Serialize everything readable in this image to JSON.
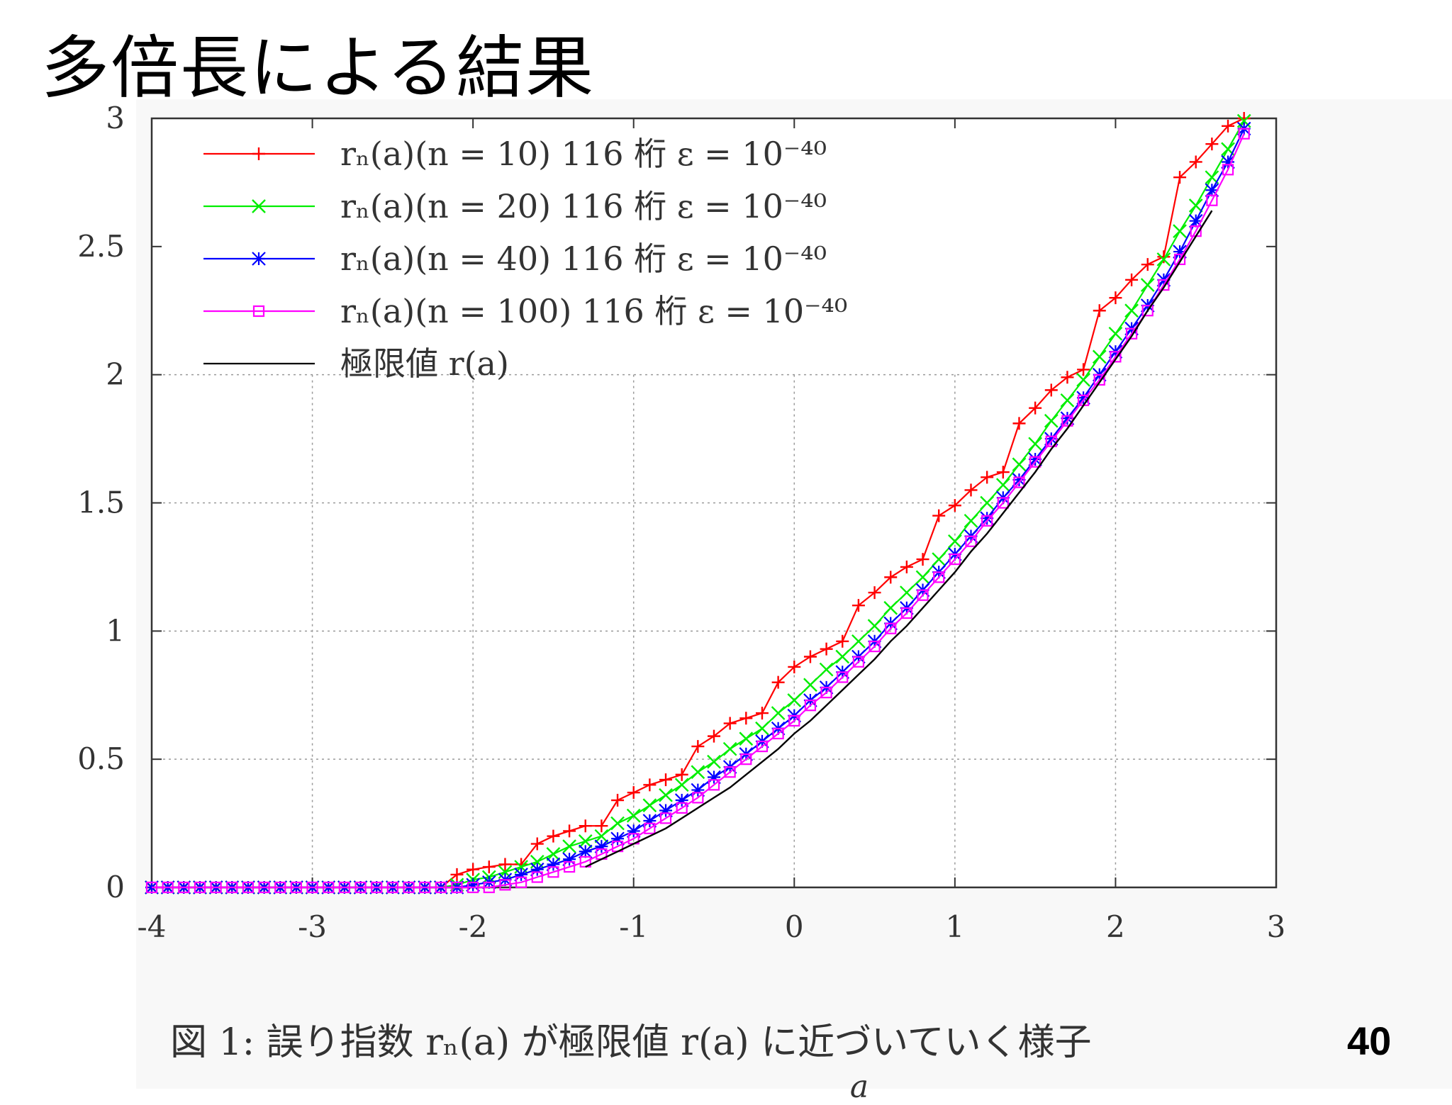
{
  "slide": {
    "title": "多倍長による結果",
    "page_number": "40"
  },
  "figure": {
    "caption": "図 1: 誤り指数 rₙ(a) が極限値 r(a) に近づいていく様子"
  },
  "chart_data": {
    "type": "line",
    "xlabel": "a",
    "ylabel": "",
    "xlim": [
      -4,
      3
    ],
    "ylim": [
      0,
      3
    ],
    "xticks": [
      "-4",
      "-3",
      "-2",
      "-1",
      "0",
      "1",
      "2",
      "3"
    ],
    "yticks": [
      "0",
      "0.5",
      "1",
      "1.5",
      "2",
      "2.5",
      "3"
    ],
    "grid": "dotted, inner region only (x -3..2, y 0.5..1.5)",
    "legend_position": "top-left",
    "series": [
      {
        "name": "rₙ(a)(n = 10) 116 桁 ε = 10⁻⁴⁰",
        "color": "#ff0000",
        "marker": "plus",
        "x": [
          -4.0,
          -3.9,
          -3.8,
          -3.7,
          -3.6,
          -3.5,
          -3.4,
          -3.3,
          -3.2,
          -3.1,
          -3.0,
          -2.9,
          -2.8,
          -2.7,
          -2.6,
          -2.5,
          -2.4,
          -2.3,
          -2.2,
          -2.1,
          -2.0,
          -1.9,
          -1.8,
          -1.7,
          -1.6,
          -1.5,
          -1.4,
          -1.3,
          -1.2,
          -1.1,
          -1.0,
          -0.9,
          -0.8,
          -0.7,
          -0.6,
          -0.5,
          -0.4,
          -0.3,
          -0.2,
          -0.1,
          0.0,
          0.1,
          0.2,
          0.3,
          0.4,
          0.5,
          0.6,
          0.7,
          0.8,
          0.9,
          1.0,
          1.1,
          1.2,
          1.3,
          1.4,
          1.5,
          1.6,
          1.7,
          1.8,
          1.9,
          2.0,
          2.1,
          2.2,
          2.3,
          2.4,
          2.5,
          2.6,
          2.7,
          2.8
        ],
        "y": [
          0,
          0,
          0,
          0,
          0,
          0,
          0,
          0,
          0,
          0,
          0,
          0,
          0,
          0,
          0,
          0,
          0,
          0,
          0,
          0.05,
          0.07,
          0.08,
          0.09,
          0.09,
          0.17,
          0.2,
          0.22,
          0.24,
          0.24,
          0.34,
          0.37,
          0.4,
          0.42,
          0.44,
          0.55,
          0.59,
          0.64,
          0.66,
          0.68,
          0.8,
          0.86,
          0.9,
          0.93,
          0.96,
          1.1,
          1.15,
          1.21,
          1.25,
          1.28,
          1.45,
          1.49,
          1.55,
          1.6,
          1.62,
          1.81,
          1.87,
          1.94,
          1.99,
          2.02,
          2.25,
          2.3,
          2.37,
          2.43,
          2.46,
          2.77,
          2.83,
          2.9,
          2.97,
          3.0
        ]
      },
      {
        "name": "rₙ(a)(n = 20) 116 桁 ε = 10⁻⁴⁰",
        "color": "#00ee00",
        "marker": "cross",
        "x": [
          -4.0,
          -3.9,
          -3.8,
          -3.7,
          -3.6,
          -3.5,
          -3.4,
          -3.3,
          -3.2,
          -3.1,
          -3.0,
          -2.9,
          -2.8,
          -2.7,
          -2.6,
          -2.5,
          -2.4,
          -2.3,
          -2.2,
          -2.1,
          -2.0,
          -1.9,
          -1.8,
          -1.7,
          -1.6,
          -1.5,
          -1.4,
          -1.3,
          -1.2,
          -1.1,
          -1.0,
          -0.9,
          -0.8,
          -0.7,
          -0.6,
          -0.5,
          -0.4,
          -0.3,
          -0.2,
          -0.1,
          0.0,
          0.1,
          0.2,
          0.3,
          0.4,
          0.5,
          0.6,
          0.7,
          0.8,
          0.9,
          1.0,
          1.1,
          1.2,
          1.3,
          1.4,
          1.5,
          1.6,
          1.7,
          1.8,
          1.9,
          2.0,
          2.1,
          2.2,
          2.3,
          2.4,
          2.5,
          2.6,
          2.7,
          2.8
        ],
        "y": [
          0,
          0,
          0,
          0,
          0,
          0,
          0,
          0,
          0,
          0,
          0,
          0,
          0,
          0,
          0,
          0,
          0,
          0,
          0,
          0.01,
          0.03,
          0.04,
          0.06,
          0.08,
          0.1,
          0.13,
          0.16,
          0.18,
          0.2,
          0.25,
          0.28,
          0.32,
          0.36,
          0.4,
          0.45,
          0.49,
          0.54,
          0.58,
          0.62,
          0.68,
          0.73,
          0.79,
          0.85,
          0.9,
          0.96,
          1.02,
          1.09,
          1.15,
          1.21,
          1.28,
          1.35,
          1.43,
          1.5,
          1.57,
          1.65,
          1.73,
          1.82,
          1.9,
          1.98,
          2.07,
          2.16,
          2.25,
          2.35,
          2.45,
          2.56,
          2.66,
          2.77,
          2.88,
          2.99
        ]
      },
      {
        "name": "rₙ(a)(n = 40) 116 桁 ε = 10⁻⁴⁰",
        "color": "#0000ff",
        "marker": "star",
        "x": [
          -4.0,
          -3.9,
          -3.8,
          -3.7,
          -3.6,
          -3.5,
          -3.4,
          -3.3,
          -3.2,
          -3.1,
          -3.0,
          -2.9,
          -2.8,
          -2.7,
          -2.6,
          -2.5,
          -2.4,
          -2.3,
          -2.2,
          -2.1,
          -2.0,
          -1.9,
          -1.8,
          -1.7,
          -1.6,
          -1.5,
          -1.4,
          -1.3,
          -1.2,
          -1.1,
          -1.0,
          -0.9,
          -0.8,
          -0.7,
          -0.6,
          -0.5,
          -0.4,
          -0.3,
          -0.2,
          -0.1,
          0.0,
          0.1,
          0.2,
          0.3,
          0.4,
          0.5,
          0.6,
          0.7,
          0.8,
          0.9,
          1.0,
          1.1,
          1.2,
          1.3,
          1.4,
          1.5,
          1.6,
          1.7,
          1.8,
          1.9,
          2.0,
          2.1,
          2.2,
          2.3,
          2.4,
          2.5,
          2.6,
          2.7,
          2.8
        ],
        "y": [
          0,
          0,
          0,
          0,
          0,
          0,
          0,
          0,
          0,
          0,
          0,
          0,
          0,
          0,
          0,
          0,
          0,
          0,
          0,
          0,
          0.01,
          0.02,
          0.03,
          0.05,
          0.07,
          0.09,
          0.11,
          0.14,
          0.16,
          0.19,
          0.22,
          0.26,
          0.3,
          0.34,
          0.38,
          0.43,
          0.47,
          0.52,
          0.57,
          0.62,
          0.67,
          0.73,
          0.78,
          0.84,
          0.9,
          0.96,
          1.03,
          1.09,
          1.16,
          1.23,
          1.3,
          1.37,
          1.44,
          1.52,
          1.59,
          1.67,
          1.75,
          1.83,
          1.91,
          2.0,
          2.09,
          2.18,
          2.27,
          2.37,
          2.48,
          2.6,
          2.72,
          2.83,
          2.96
        ]
      },
      {
        "name": "rₙ(a)(n = 100) 116 桁 ε = 10⁻⁴⁰",
        "color": "#ff00ff",
        "marker": "square",
        "x": [
          -4.0,
          -3.9,
          -3.8,
          -3.7,
          -3.6,
          -3.5,
          -3.4,
          -3.3,
          -3.2,
          -3.1,
          -3.0,
          -2.9,
          -2.8,
          -2.7,
          -2.6,
          -2.5,
          -2.4,
          -2.3,
          -2.2,
          -2.1,
          -2.0,
          -1.9,
          -1.8,
          -1.7,
          -1.6,
          -1.5,
          -1.4,
          -1.3,
          -1.2,
          -1.1,
          -1.0,
          -0.9,
          -0.8,
          -0.7,
          -0.6,
          -0.5,
          -0.4,
          -0.3,
          -0.2,
          -0.1,
          0.0,
          0.1,
          0.2,
          0.3,
          0.4,
          0.5,
          0.6,
          0.7,
          0.8,
          0.9,
          1.0,
          1.1,
          1.2,
          1.3,
          1.4,
          1.5,
          1.6,
          1.7,
          1.8,
          1.9,
          2.0,
          2.1,
          2.2,
          2.3,
          2.4,
          2.5,
          2.6,
          2.7,
          2.8
        ],
        "y": [
          0,
          0,
          0,
          0,
          0,
          0,
          0,
          0,
          0,
          0,
          0,
          0,
          0,
          0,
          0,
          0,
          0,
          0,
          0,
          0,
          0,
          0,
          0.01,
          0.02,
          0.04,
          0.06,
          0.08,
          0.1,
          0.13,
          0.16,
          0.19,
          0.23,
          0.27,
          0.31,
          0.35,
          0.4,
          0.45,
          0.5,
          0.55,
          0.6,
          0.65,
          0.71,
          0.76,
          0.82,
          0.88,
          0.94,
          1.01,
          1.07,
          1.14,
          1.21,
          1.28,
          1.35,
          1.43,
          1.5,
          1.58,
          1.66,
          1.74,
          1.82,
          1.9,
          1.98,
          2.07,
          2.16,
          2.25,
          2.35,
          2.45,
          2.56,
          2.68,
          2.8,
          2.94
        ]
      },
      {
        "name": "極限値 r(a)",
        "color": "#000000",
        "marker": "none",
        "x": [
          -1.3,
          -1.2,
          -1.1,
          -1.0,
          -0.9,
          -0.8,
          -0.7,
          -0.6,
          -0.5,
          -0.4,
          -0.3,
          -0.2,
          -0.1,
          0.0,
          0.1,
          0.2,
          0.3,
          0.4,
          0.5,
          0.6,
          0.7,
          0.8,
          0.9,
          1.0,
          1.1,
          1.2,
          1.3,
          1.4,
          1.5,
          1.6,
          1.7,
          1.8,
          1.9,
          2.0,
          2.1,
          2.2,
          2.3,
          2.4,
          2.5,
          2.6
        ],
        "y": [
          0.08,
          0.11,
          0.14,
          0.17,
          0.2,
          0.23,
          0.27,
          0.31,
          0.35,
          0.39,
          0.44,
          0.49,
          0.54,
          0.6,
          0.65,
          0.71,
          0.77,
          0.83,
          0.89,
          0.96,
          1.02,
          1.09,
          1.16,
          1.23,
          1.31,
          1.38,
          1.46,
          1.54,
          1.62,
          1.71,
          1.79,
          1.88,
          1.97,
          2.06,
          2.15,
          2.25,
          2.34,
          2.44,
          2.54,
          2.64
        ]
      }
    ]
  }
}
